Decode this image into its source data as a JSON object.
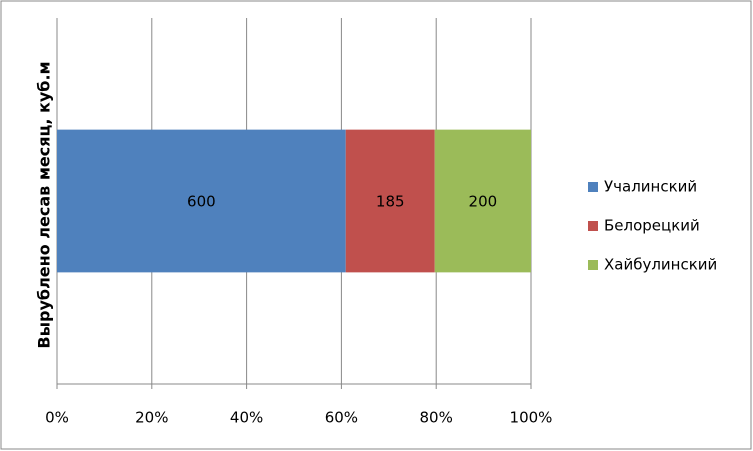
{
  "chart_data": {
    "type": "bar",
    "orientation": "horizontal",
    "stacking": "percent",
    "y_label": "Вырублено лесав месяц, куб.м",
    "categories": [
      null
    ],
    "series": [
      {
        "name": "Учалинский",
        "color": "#4F81BD",
        "values": [
          600
        ]
      },
      {
        "name": "Белорецкий",
        "color": "#C0504D",
        "values": [
          185
        ]
      },
      {
        "name": "Хайбулинский",
        "color": "#9BBB59",
        "values": [
          200
        ]
      }
    ],
    "xlim": [
      0,
      100
    ],
    "xticks": [
      {
        "value": 0,
        "label": "0%"
      },
      {
        "value": 20,
        "label": "20%"
      },
      {
        "value": 40,
        "label": "40%"
      },
      {
        "value": 60,
        "label": "60%"
      },
      {
        "value": 80,
        "label": "80%"
      },
      {
        "value": 100,
        "label": "100%"
      }
    ],
    "grid": true,
    "data_labels": true,
    "legend": "right"
  }
}
